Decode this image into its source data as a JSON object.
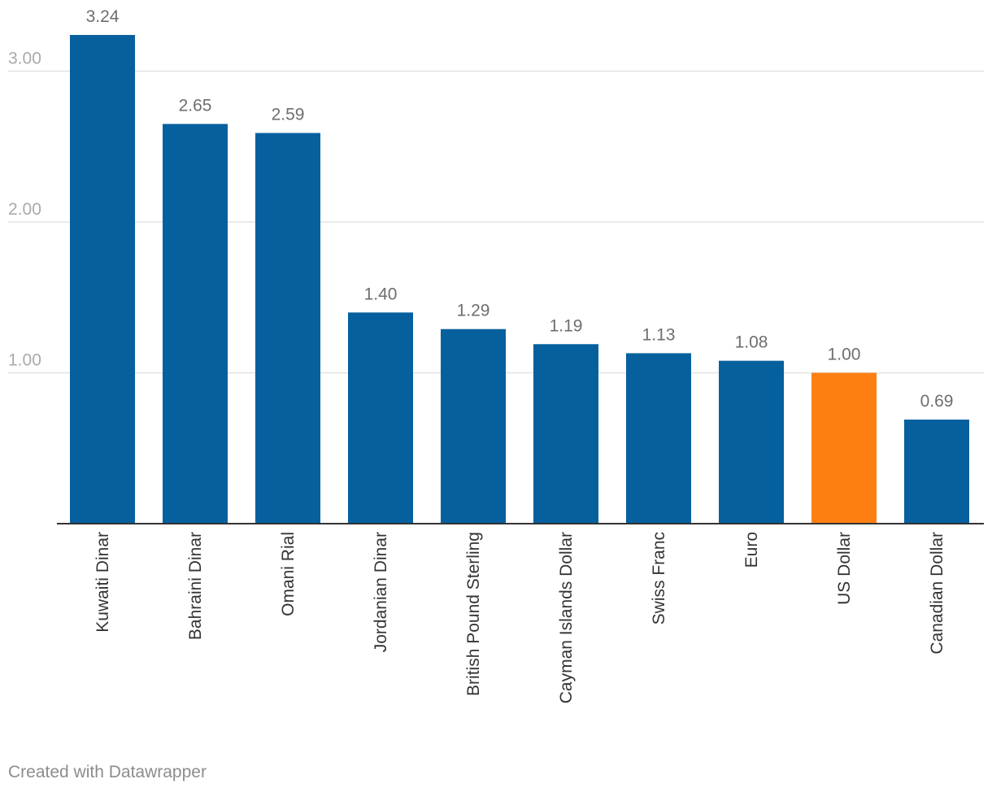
{
  "chart_data": {
    "type": "bar",
    "title": "",
    "xlabel": "",
    "ylabel": "",
    "categories": [
      "Kuwaiti Dinar",
      "Bahraini Dinar",
      "Omani Rial",
      "Jordanian Dinar",
      "British Pound Sterling",
      "Cayman Islands Dollar",
      "Swiss Franc",
      "Euro",
      "US Dollar",
      "Canadian Dollar"
    ],
    "values": [
      3.24,
      2.65,
      2.59,
      1.4,
      1.29,
      1.19,
      1.13,
      1.08,
      1.0,
      0.69
    ],
    "value_labels": [
      "3.24",
      "2.65",
      "2.59",
      "1.40",
      "1.29",
      "1.19",
      "1.13",
      "1.08",
      "1.00",
      "0.69"
    ],
    "highlight_category": "US Dollar",
    "ylim": [
      0,
      3.24
    ],
    "yticks": [
      1,
      2,
      3
    ],
    "ytick_labels": [
      "1.00",
      "2.00",
      "3.00"
    ],
    "grid": true,
    "colors": {
      "bar": "#05609d",
      "highlight": "#fd7f11",
      "grid": "#e3e3e3",
      "axis": "#333333",
      "tick_label": "#aaaaaa",
      "value_label": "#6e6e6e",
      "category_label": "#333333"
    }
  },
  "footer": {
    "credit": "Created with Datawrapper"
  }
}
